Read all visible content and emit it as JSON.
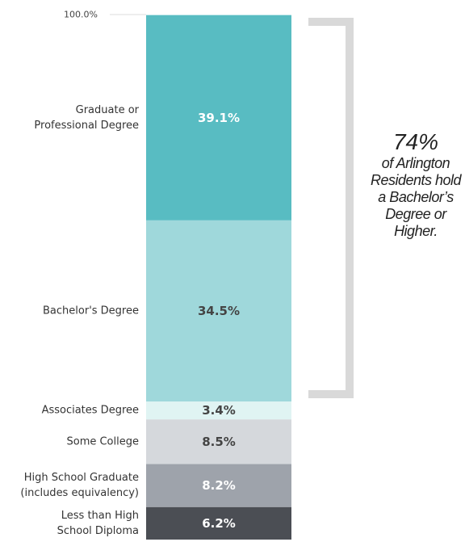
{
  "chart_data": {
    "type": "stacked-column",
    "categories": [
      "Less than High\nSchool Diploma",
      "High School Graduate\n(includes equivalency)",
      "Some College",
      "Associates Degree",
      "Bachelor's Degree",
      "Graduate or\nProfessional Degree"
    ],
    "values": [
      6.2,
      8.2,
      8.5,
      3.4,
      34.5,
      39.1
    ],
    "value_labels": [
      "6.2%",
      "8.2%",
      "8.5%",
      "3.4%",
      "34.5%",
      "39.1%"
    ],
    "colors": [
      "#4b4e54",
      "#9ea3ab",
      "#d5d8dc",
      "#e0f4f3",
      "#9fd8db",
      "#58bcc2"
    ],
    "ylim": [
      0,
      100
    ],
    "yticks": [
      {
        "value": 100,
        "label": "100.0%"
      }
    ],
    "annotation": {
      "headline": "74%",
      "text": "of Arlington Residents hold a Bachelor’s Degree or Higher."
    }
  }
}
